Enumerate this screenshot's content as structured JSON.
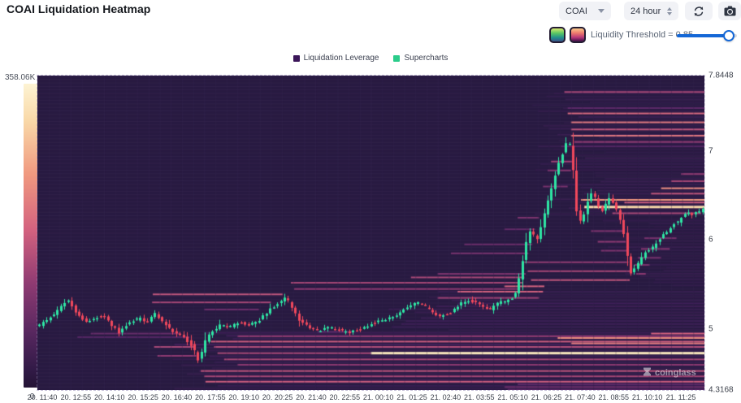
{
  "header": {
    "title": "COAI Liquidation Heatmap",
    "symbol_select": "COAI",
    "interval_select": "24 hour"
  },
  "controls": {
    "threshold_label": "Liquidity Threshold = 0.85",
    "threshold_value": 0.85,
    "slider_color": "#1467d6"
  },
  "legend": {
    "items": [
      {
        "label": "Liquidation Leverage",
        "color": "#3b1659"
      },
      {
        "label": "Supercharts",
        "color": "#2bcc8a"
      }
    ]
  },
  "colorbar": {
    "max_label": "358.06K",
    "min_label": "0"
  },
  "watermark": "coinglass",
  "chart_data": {
    "type": "heatmap",
    "subtype": "liquidation-heatmap-with-candlesticks",
    "y_axis": {
      "min": 4.3168,
      "max": 7.8448,
      "ticks": [
        {
          "p": 7.8448,
          "label": "7.8448"
        },
        {
          "p": 7.0,
          "label": "7"
        },
        {
          "p": 6.0,
          "label": "6"
        },
        {
          "p": 5.0,
          "label": "5"
        },
        {
          "p": 4.3168,
          "label": "4.3168"
        }
      ]
    },
    "x_labels": [
      "20. 11:40",
      "20. 12:55",
      "20. 14:10",
      "20. 15:25",
      "20. 16:40",
      "20. 17:55",
      "20. 19:10",
      "20. 20:25",
      "20. 21:40",
      "20. 22:55",
      "21. 00:10",
      "21. 01:25",
      "21. 02:40",
      "21. 03:55",
      "21. 05:10",
      "21. 06:25",
      "21. 07:40",
      "21. 08:55",
      "21. 10:10",
      "21. 11:25"
    ],
    "colors": {
      "bg": "#281a41",
      "grid": "rgba(200,185,235,0.05)",
      "up": "#2ee6a4",
      "down": "#f0485c",
      "colormap_stops": [
        [
          0.0,
          42,
          27,
          66
        ],
        [
          0.25,
          74,
          35,
          99
        ],
        [
          0.45,
          142,
          58,
          114
        ],
        [
          0.6,
          212,
          98,
          127
        ],
        [
          0.75,
          240,
          152,
          127
        ],
        [
          0.88,
          249,
          217,
          168
        ],
        [
          1.0,
          253,
          243,
          208
        ]
      ]
    },
    "candle_count": 185,
    "price_path": [
      [
        0.0,
        5.02
      ],
      [
        0.012,
        5.08
      ],
      [
        0.025,
        5.15
      ],
      [
        0.04,
        5.28
      ],
      [
        0.05,
        5.33
      ],
      [
        0.06,
        5.18
      ],
      [
        0.075,
        5.08
      ],
      [
        0.09,
        5.13
      ],
      [
        0.1,
        5.16
      ],
      [
        0.112,
        5.05
      ],
      [
        0.125,
        4.96
      ],
      [
        0.14,
        5.08
      ],
      [
        0.155,
        5.12
      ],
      [
        0.168,
        5.08
      ],
      [
        0.178,
        5.18
      ],
      [
        0.19,
        5.08
      ],
      [
        0.205,
        4.97
      ],
      [
        0.22,
        4.92
      ],
      [
        0.235,
        4.8
      ],
      [
        0.245,
        4.63
      ],
      [
        0.252,
        4.84
      ],
      [
        0.262,
        4.96
      ],
      [
        0.275,
        5.04
      ],
      [
        0.29,
        5.02
      ],
      [
        0.305,
        5.08
      ],
      [
        0.32,
        5.04
      ],
      [
        0.335,
        5.1
      ],
      [
        0.35,
        5.22
      ],
      [
        0.365,
        5.3
      ],
      [
        0.375,
        5.36
      ],
      [
        0.385,
        5.22
      ],
      [
        0.395,
        5.1
      ],
      [
        0.41,
        5.02
      ],
      [
        0.425,
        4.98
      ],
      [
        0.44,
        5.02
      ],
      [
        0.455,
        4.99
      ],
      [
        0.47,
        4.96
      ],
      [
        0.485,
        5.0
      ],
      [
        0.5,
        5.05
      ],
      [
        0.515,
        5.09
      ],
      [
        0.53,
        5.12
      ],
      [
        0.545,
        5.18
      ],
      [
        0.56,
        5.26
      ],
      [
        0.575,
        5.3
      ],
      [
        0.59,
        5.22
      ],
      [
        0.605,
        5.14
      ],
      [
        0.62,
        5.18
      ],
      [
        0.635,
        5.28
      ],
      [
        0.65,
        5.32
      ],
      [
        0.665,
        5.28
      ],
      [
        0.68,
        5.22
      ],
      [
        0.695,
        5.3
      ],
      [
        0.71,
        5.33
      ],
      [
        0.718,
        5.38
      ],
      [
        0.726,
        5.62
      ],
      [
        0.734,
        5.95
      ],
      [
        0.742,
        6.12
      ],
      [
        0.75,
        5.98
      ],
      [
        0.758,
        6.18
      ],
      [
        0.768,
        6.45
      ],
      [
        0.778,
        6.72
      ],
      [
        0.788,
        6.95
      ],
      [
        0.797,
        7.12
      ],
      [
        0.803,
        7.02
      ],
      [
        0.81,
        6.35
      ],
      [
        0.818,
        6.18
      ],
      [
        0.826,
        6.42
      ],
      [
        0.834,
        6.55
      ],
      [
        0.842,
        6.4
      ],
      [
        0.85,
        6.32
      ],
      [
        0.858,
        6.48
      ],
      [
        0.866,
        6.4
      ],
      [
        0.874,
        6.28
      ],
      [
        0.882,
        6.05
      ],
      [
        0.89,
        5.62
      ],
      [
        0.898,
        5.68
      ],
      [
        0.906,
        5.78
      ],
      [
        0.915,
        5.88
      ],
      [
        0.925,
        5.92
      ],
      [
        0.935,
        6.02
      ],
      [
        0.945,
        6.08
      ],
      [
        0.955,
        6.18
      ],
      [
        0.965,
        6.22
      ],
      [
        0.975,
        6.32
      ],
      [
        0.985,
        6.28
      ],
      [
        1.0,
        6.35
      ]
    ],
    "liquidation_lines": [
      [
        7.66,
        0.79,
        1.0,
        0.5
      ],
      [
        7.48,
        0.795,
        1.0,
        0.3
      ],
      [
        7.42,
        0.795,
        1.0,
        0.62
      ],
      [
        7.32,
        0.8,
        1.0,
        0.66
      ],
      [
        7.24,
        0.8,
        1.0,
        0.55
      ],
      [
        7.17,
        0.8,
        1.0,
        0.66
      ],
      [
        7.1,
        0.805,
        1.0,
        0.45
      ],
      [
        7.05,
        0.785,
        1.0,
        0.28
      ],
      [
        6.88,
        0.77,
        0.805,
        0.48
      ],
      [
        6.78,
        0.765,
        0.8,
        0.42
      ],
      [
        6.6,
        0.758,
        0.795,
        0.38
      ],
      [
        6.45,
        0.815,
        1.0,
        0.75
      ],
      [
        6.37,
        0.82,
        1.0,
        0.88
      ],
      [
        6.3,
        0.862,
        0.995,
        0.5
      ],
      [
        6.42,
        0.88,
        1.0,
        0.58
      ],
      [
        6.52,
        0.92,
        1.0,
        0.55
      ],
      [
        6.58,
        0.935,
        1.0,
        0.72
      ],
      [
        6.66,
        0.95,
        1.0,
        0.5
      ],
      [
        6.74,
        0.965,
        1.0,
        0.45
      ],
      [
        6.1,
        0.83,
        0.878,
        0.4
      ],
      [
        5.98,
        0.84,
        0.882,
        0.45
      ],
      [
        5.88,
        0.845,
        0.884,
        0.4
      ],
      [
        5.75,
        0.73,
        0.886,
        0.45
      ],
      [
        5.65,
        0.735,
        0.888,
        0.5
      ],
      [
        5.55,
        0.74,
        0.888,
        0.55
      ],
      [
        5.48,
        0.7,
        0.76,
        0.6
      ],
      [
        5.42,
        0.63,
        0.758,
        0.6
      ],
      [
        5.35,
        0.6,
        0.752,
        0.48
      ],
      [
        5.52,
        0.38,
        0.728,
        0.5
      ],
      [
        5.45,
        0.385,
        0.724,
        0.45
      ],
      [
        5.58,
        0.56,
        0.73,
        0.5
      ],
      [
        5.62,
        0.6,
        0.732,
        0.4
      ],
      [
        5.85,
        0.62,
        0.736,
        0.38
      ],
      [
        5.95,
        0.64,
        0.742,
        0.34
      ],
      [
        6.12,
        0.7,
        0.746,
        0.32
      ],
      [
        6.25,
        0.72,
        0.752,
        0.4
      ],
      [
        5.39,
        0.173,
        0.368,
        0.55
      ],
      [
        5.3,
        0.172,
        0.35,
        0.5
      ],
      [
        5.22,
        0.25,
        0.332,
        0.35
      ],
      [
        4.95,
        0.08,
        0.215,
        0.33
      ],
      [
        4.91,
        0.06,
        0.228,
        0.28
      ],
      [
        4.8,
        0.175,
        0.234,
        0.5
      ],
      [
        4.7,
        0.18,
        0.238,
        0.45
      ],
      [
        4.86,
        0.26,
        1.0,
        0.58
      ],
      [
        4.8,
        0.265,
        1.0,
        0.52
      ],
      [
        4.73,
        0.27,
        0.5,
        0.5
      ],
      [
        4.73,
        0.5,
        1.0,
        0.95
      ],
      [
        4.66,
        0.28,
        1.0,
        0.5
      ],
      [
        4.6,
        0.3,
        1.0,
        0.44
      ],
      [
        4.53,
        0.245,
        1.0,
        0.55
      ],
      [
        4.47,
        0.25,
        1.0,
        0.5
      ],
      [
        4.41,
        0.252,
        1.0,
        0.58
      ],
      [
        4.92,
        0.3,
        1.0,
        0.46
      ],
      [
        4.97,
        0.42,
        0.475,
        0.3
      ],
      [
        4.9,
        0.78,
        1.0,
        0.72
      ],
      [
        4.84,
        0.8,
        1.0,
        0.68
      ],
      [
        4.95,
        0.92,
        1.0,
        0.6
      ],
      [
        4.35,
        0.7,
        1.0,
        0.35
      ],
      [
        4.32,
        0.705,
        1.0,
        0.3
      ],
      [
        4.38,
        0.72,
        1.0,
        0.3
      ],
      [
        5.72,
        0.895,
        0.918,
        0.4
      ],
      [
        5.62,
        0.898,
        0.912,
        0.45
      ],
      [
        5.8,
        0.9,
        0.935,
        0.38
      ],
      [
        5.9,
        0.905,
        0.948,
        0.42
      ],
      [
        6.02,
        0.91,
        0.958,
        0.38
      ]
    ],
    "texture_bands": [
      {
        "p0": 4.34,
        "p1": 4.98,
        "x0": 0.25,
        "s": 0.16,
        "dp": 0.033
      },
      {
        "p0": 5.0,
        "p1": 5.44,
        "x0": 0.58,
        "s": 0.13,
        "dp": 0.033
      },
      {
        "p0": 6.3,
        "p1": 7.7,
        "x0": 0.8,
        "s": 0.1,
        "dp": 0.033
      },
      {
        "p0": 5.5,
        "p1": 6.25,
        "x0": 0.9,
        "s": 0.08,
        "dp": 0.033
      }
    ]
  }
}
